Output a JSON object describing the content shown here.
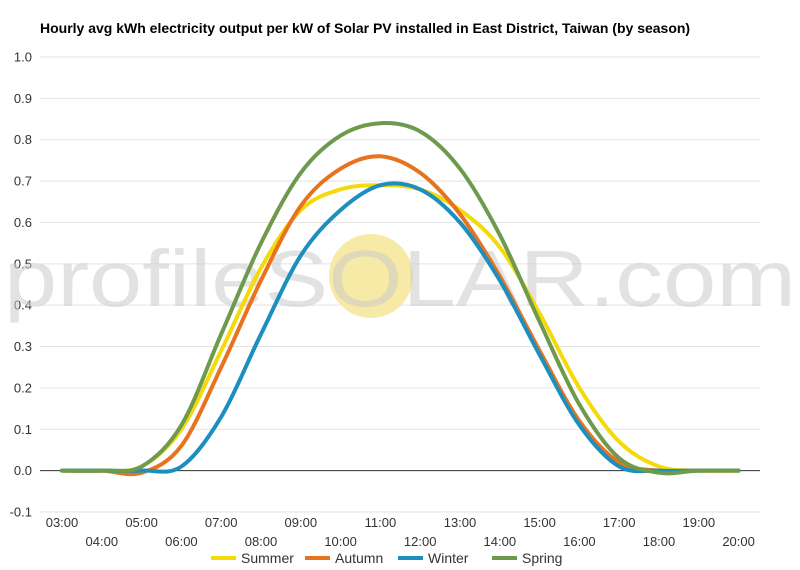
{
  "chart_data": {
    "type": "line",
    "title": "Hourly avg kWh electricity output per kW of Solar PV installed in East District, Taiwan (by season)",
    "xlabel": "",
    "ylabel": "",
    "categories": [
      "03:00",
      "04:00",
      "05:00",
      "06:00",
      "07:00",
      "08:00",
      "09:00",
      "10:00",
      "11:00",
      "12:00",
      "13:00",
      "14:00",
      "15:00",
      "16:00",
      "17:00",
      "18:00",
      "19:00",
      "20:00"
    ],
    "top_tick_labels": [
      "03:00",
      "05:00",
      "07:00",
      "09:00",
      "11:00",
      "13:00",
      "15:00",
      "17:00",
      "19:00"
    ],
    "bottom_tick_labels": [
      "04:00",
      "06:00",
      "08:00",
      "10:00",
      "12:00",
      "14:00",
      "16:00",
      "18:00",
      "20:00"
    ],
    "ylim": [
      -0.1,
      1.0
    ],
    "yticks": [
      "1.0",
      "0.9",
      "0.8",
      "0.7",
      "0.6",
      "0.5",
      "0.4",
      "0.3",
      "0.2",
      "0.1",
      "0.0",
      "-0.1"
    ],
    "grid": true,
    "legend_position": "bottom",
    "series": [
      {
        "name": "Summer",
        "color": "#F5D90A",
        "values": [
          0,
          0,
          0.01,
          0.1,
          0.29,
          0.49,
          0.63,
          0.68,
          0.69,
          0.68,
          0.63,
          0.54,
          0.38,
          0.2,
          0.07,
          0.01,
          0,
          0
        ]
      },
      {
        "name": "Autumn",
        "color": "#E8731E",
        "values": [
          0,
          0,
          -0.005,
          0.06,
          0.25,
          0.46,
          0.64,
          0.73,
          0.76,
          0.72,
          0.62,
          0.47,
          0.29,
          0.12,
          0.02,
          0,
          0,
          0
        ]
      },
      {
        "name": "Winter",
        "color": "#1D8FBE",
        "values": [
          0,
          0,
          0,
          0.01,
          0.13,
          0.33,
          0.52,
          0.63,
          0.69,
          0.68,
          0.6,
          0.46,
          0.28,
          0.11,
          0.01,
          0,
          0,
          0
        ]
      },
      {
        "name": "Spring",
        "color": "#6E9A4E",
        "values": [
          0,
          0,
          0.01,
          0.11,
          0.33,
          0.55,
          0.72,
          0.81,
          0.84,
          0.82,
          0.73,
          0.57,
          0.36,
          0.16,
          0.03,
          -0.005,
          0,
          0
        ]
      }
    ]
  },
  "watermark": {
    "text": "profileSOLAR.com",
    "sun_color": "#F7E9A6"
  }
}
